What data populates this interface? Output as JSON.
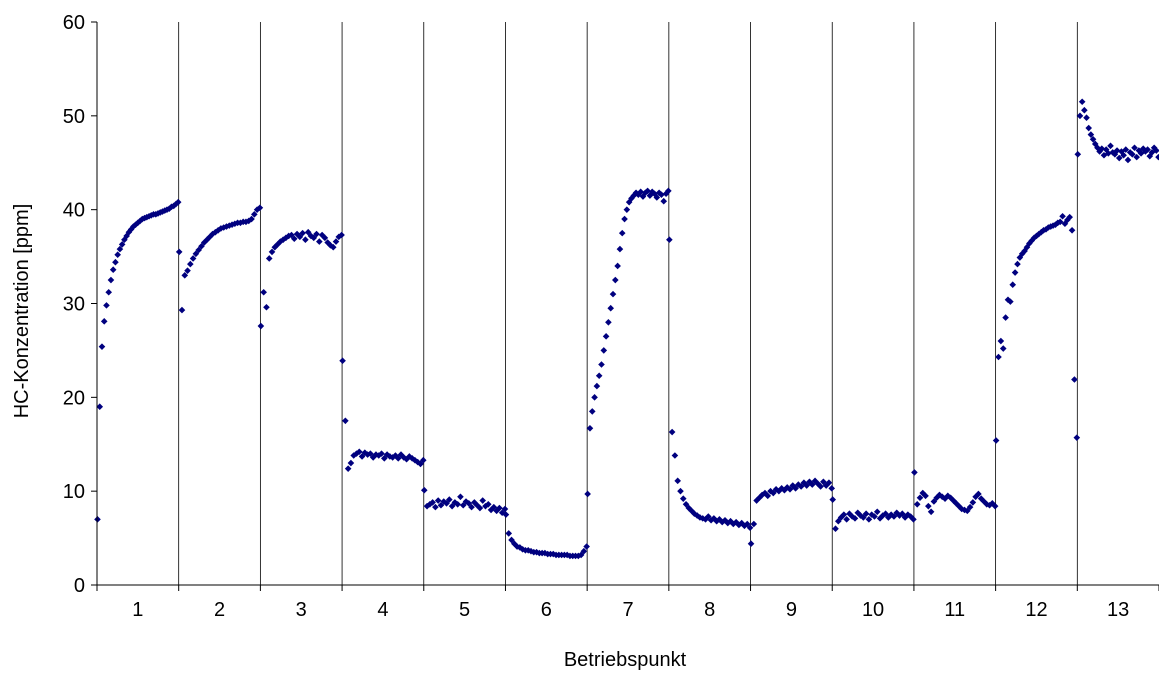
{
  "chart_data": {
    "type": "scatter",
    "title": "",
    "xlabel": "Betriebspunkt",
    "ylabel": "HC-Konzentration [ppm]",
    "ylim": [
      0,
      60
    ],
    "yticks": [
      "0",
      "10",
      "20",
      "30",
      "40",
      "50",
      "60"
    ],
    "categories": [
      "1",
      "2",
      "3",
      "4",
      "5",
      "6",
      "7",
      "8",
      "9",
      "10",
      "11",
      "12",
      "13"
    ],
    "grid": false,
    "legend": "none",
    "marker_color": "#00007F",
    "segments": [
      {
        "label": "1",
        "values": [
          7,
          19,
          25.4,
          28.1,
          29.8,
          31.2,
          32.5,
          33.6,
          34.4,
          35.2,
          35.8,
          36.3,
          36.8,
          37.2,
          37.6,
          37.9,
          38.2,
          38.4,
          38.6,
          38.8,
          39.0,
          39.1,
          39.2,
          39.3,
          39.4,
          39.5,
          39.5,
          39.6,
          39.7,
          39.8,
          39.9,
          40.0,
          40.1,
          40.3,
          40.4,
          40.6,
          40.8
        ]
      },
      {
        "label": "2",
        "values": [
          35.5,
          29.3,
          33.0,
          33.5,
          34.2,
          34.8,
          35.3,
          35.7,
          36.1,
          36.5,
          36.8,
          37.1,
          37.4,
          37.6,
          37.8,
          38.0,
          38.1,
          38.2,
          38.3,
          38.4,
          38.5,
          38.6,
          38.6,
          38.7,
          38.7,
          38.8,
          39.0,
          39.5,
          40.0,
          40.2
        ]
      },
      {
        "label": "3",
        "values": [
          27.6,
          31.2,
          29.6,
          34.8,
          35.5,
          36.0,
          36.3,
          36.6,
          36.8,
          37.0,
          37.2,
          37.3,
          36.9,
          37.4,
          37.1,
          37.5,
          36.8,
          37.6,
          37.2,
          37.0,
          37.4,
          36.6,
          37.3,
          37.0,
          36.5,
          36.2,
          36.0,
          36.6,
          37.1,
          37.3
        ]
      },
      {
        "label": "4",
        "values": [
          23.9,
          17.5,
          12.4,
          13.0,
          13.8,
          14.0,
          14.2,
          13.7,
          14.1,
          13.9,
          14.0,
          13.6,
          13.9,
          13.8,
          14.0,
          13.5,
          13.9,
          13.7,
          13.6,
          13.8,
          13.5,
          13.9,
          13.6,
          13.4,
          13.7,
          13.5,
          13.3,
          13.1,
          12.9,
          13.3
        ]
      },
      {
        "label": "5",
        "values": [
          10.1,
          8.4,
          8.6,
          8.8,
          8.3,
          9.0,
          8.5,
          8.9,
          8.7,
          9.1,
          8.4,
          8.8,
          8.6,
          9.4,
          8.5,
          8.9,
          8.7,
          8.3,
          8.8,
          8.5,
          8.2,
          9.0,
          8.4,
          8.6,
          8.0,
          8.3,
          7.9,
          8.2,
          7.7,
          8.1
        ]
      },
      {
        "label": "6",
        "values": [
          7.5,
          5.5,
          4.8,
          4.4,
          4.1,
          4.0,
          3.8,
          3.7,
          3.7,
          3.6,
          3.5,
          3.5,
          3.4,
          3.4,
          3.4,
          3.3,
          3.3,
          3.3,
          3.2,
          3.2,
          3.2,
          3.2,
          3.2,
          3.1,
          3.1,
          3.1,
          3.1,
          3.2,
          3.6,
          4.1
        ]
      },
      {
        "label": "7",
        "values": [
          9.7,
          16.7,
          18.5,
          20.0,
          21.2,
          22.3,
          23.5,
          25.0,
          26.5,
          28.0,
          29.5,
          31.0,
          32.5,
          34.0,
          35.8,
          37.5,
          39.0,
          40.0,
          40.8,
          41.2,
          41.5,
          41.8,
          41.6,
          41.9,
          41.4,
          41.8,
          42.0,
          41.5,
          41.9,
          41.7,
          41.3,
          41.8,
          41.6,
          40.9,
          41.7,
          42.0
        ]
      },
      {
        "label": "8",
        "values": [
          36.8,
          16.3,
          13.8,
          11.1,
          10.0,
          9.2,
          8.6,
          8.2,
          7.9,
          7.6,
          7.4,
          7.2,
          7.1,
          7.0,
          7.3,
          6.9,
          7.1,
          6.8,
          7.0,
          6.7,
          6.9,
          6.6,
          6.8,
          6.5,
          6.7,
          6.4,
          6.6,
          6.3,
          6.5,
          6.1
        ]
      },
      {
        "label": "9",
        "values": [
          4.4,
          6.5,
          9.0,
          9.3,
          9.6,
          9.8,
          9.5,
          10.0,
          9.8,
          10.2,
          10.0,
          10.3,
          10.1,
          10.4,
          10.2,
          10.6,
          10.3,
          10.7,
          10.5,
          10.9,
          10.6,
          11.0,
          10.7,
          11.1,
          10.8,
          10.5,
          11.0,
          10.6,
          10.9,
          10.3
        ]
      },
      {
        "label": "10",
        "values": [
          9.1,
          6.0,
          6.8,
          7.2,
          7.5,
          7.0,
          7.6,
          7.3,
          7.1,
          7.7,
          7.4,
          7.2,
          7.6,
          7.0,
          7.5,
          7.3,
          7.8,
          7.1,
          7.4,
          7.6,
          7.2,
          7.5,
          7.3,
          7.7,
          7.4,
          7.6,
          7.2,
          7.5,
          7.3,
          7.0
        ]
      },
      {
        "label": "11",
        "values": [
          12.0,
          8.6,
          9.3,
          9.8,
          9.5,
          8.4,
          7.8,
          8.9,
          9.3,
          9.6,
          9.4,
          9.2,
          9.5,
          9.3,
          9.0,
          8.7,
          8.4,
          8.1,
          8.0,
          7.9,
          8.3,
          8.8,
          9.4,
          9.7,
          9.2,
          8.9,
          8.6,
          8.5,
          8.7,
          8.4
        ]
      },
      {
        "label": "12",
        "values": [
          15.4,
          24.3,
          26.0,
          25.2,
          28.5,
          30.4,
          30.2,
          32.0,
          33.3,
          34.2,
          34.9,
          35.3,
          35.6,
          36.0,
          36.4,
          36.7,
          37.0,
          37.2,
          37.4,
          37.6,
          37.8,
          37.9,
          38.1,
          38.2,
          38.3,
          38.4,
          38.6,
          38.7,
          39.3,
          38.5,
          38.9,
          39.2,
          37.8,
          21.9,
          15.7
        ]
      },
      {
        "label": "13",
        "values": [
          45.9,
          50.0,
          51.5,
          50.6,
          49.8,
          48.7,
          48.0,
          47.5,
          47.0,
          46.6,
          46.2,
          46.5,
          45.8,
          46.4,
          46.0,
          46.8,
          46.1,
          45.9,
          46.3,
          45.5,
          46.2,
          45.8,
          46.4,
          45.3,
          46.1,
          45.9,
          46.6,
          45.6,
          46.3,
          46.0,
          46.5,
          46.2,
          46.4,
          45.7,
          46.1,
          46.6,
          46.3,
          45.6
        ]
      }
    ]
  }
}
